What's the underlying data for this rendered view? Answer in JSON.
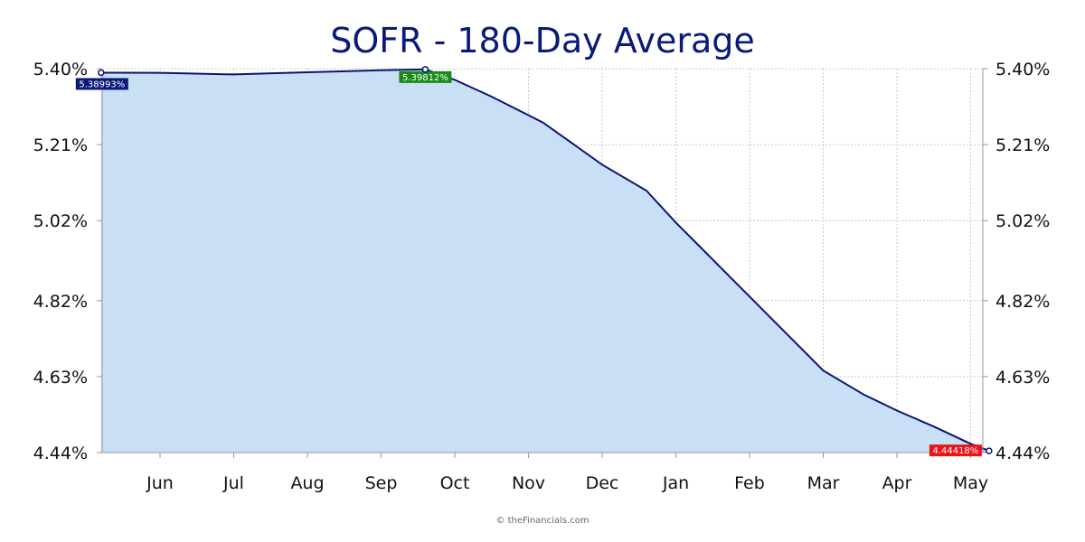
{
  "chart_data": {
    "type": "area",
    "title": "SOFR - 180-Day Average",
    "xlabel": "",
    "ylabel": "",
    "x_tick_labels": [
      "Jun",
      "Jul",
      "Aug",
      "Sep",
      "Oct",
      "Nov",
      "Dec",
      "Jan",
      "Feb",
      "Mar",
      "Apr",
      "May"
    ],
    "y_tick_labels": [
      "4.44%",
      "4.63%",
      "4.82%",
      "5.02%",
      "5.21%",
      "5.40%"
    ],
    "y_ticks": [
      4.44,
      4.63,
      4.82,
      5.02,
      5.21,
      5.4
    ],
    "ylim": [
      4.44,
      5.4
    ],
    "x_index_range": [
      -0.8,
      11.25
    ],
    "grid": true,
    "dual_y_axis": true,
    "x": [
      -0.8,
      0.0,
      1.0,
      2.0,
      3.0,
      3.6,
      4.0,
      4.5,
      5.2,
      6.0,
      6.6,
      7.0,
      8.0,
      9.0,
      9.55,
      10.0,
      10.5,
      11.0,
      11.25
    ],
    "values": [
      5.38993,
      5.3895,
      5.3855,
      5.391,
      5.396,
      5.39812,
      5.372,
      5.33,
      5.265,
      5.16,
      5.095,
      5.015,
      4.83,
      4.645,
      4.585,
      4.545,
      4.505,
      4.462,
      4.44418
    ],
    "series": [
      {
        "name": "",
        "line_color": "#0a1473",
        "fill_color": "#c9dff6"
      }
    ],
    "annotations": [
      {
        "label": "5.38993%",
        "x": -0.8,
        "y": 5.38993,
        "color": "#0a1a7a",
        "kind": "start"
      },
      {
        "label": "5.39812%",
        "x": 3.6,
        "y": 5.39812,
        "color": "#1a8a1a",
        "kind": "high"
      },
      {
        "label": "4.44418%",
        "x": 11.25,
        "y": 4.44418,
        "color": "#e8141a",
        "kind": "low"
      }
    ],
    "copyright": "© theFinancials.com"
  }
}
